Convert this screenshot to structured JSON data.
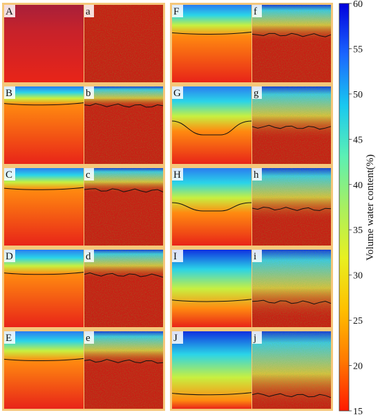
{
  "colorbar": {
    "title": "Volume water content(%)",
    "ticks": [
      "60",
      "55",
      "50",
      "45",
      "40",
      "35",
      "30",
      "25",
      "20",
      "15"
    ],
    "min": 15,
    "max": 60,
    "stops": [
      "#0000dd",
      "#1a66ff",
      "#19c8f0",
      "#5cf0b4",
      "#a8f060",
      "#e8f020",
      "#ffc000",
      "#ff7a00",
      "#ff1a00"
    ]
  },
  "panels": [
    {
      "sim": "A",
      "obs": "a",
      "wet_fraction": 0.0,
      "front_level": null
    },
    {
      "sim": "B",
      "obs": "b",
      "wet_fraction": 0.22,
      "front_level": 0.22
    },
    {
      "sim": "C",
      "obs": "c",
      "wet_fraction": 0.26,
      "front_level": 0.26
    },
    {
      "sim": "D",
      "obs": "d",
      "wet_fraction": 0.3,
      "front_level": 0.3
    },
    {
      "sim": "E",
      "obs": "e",
      "wet_fraction": 0.36,
      "front_level": 0.36
    },
    {
      "sim": "F",
      "obs": "f",
      "wet_fraction": 0.38,
      "front_level": 0.36
    },
    {
      "sim": "G",
      "obs": "g",
      "wet_fraction": 0.55,
      "front_level": 0.5
    },
    {
      "sim": "H",
      "obs": "h",
      "wet_fraction": 0.55,
      "front_level": 0.5
    },
    {
      "sim": "I",
      "obs": "i",
      "wet_fraction": 0.72,
      "front_level": 0.65
    },
    {
      "sim": "J",
      "obs": "j",
      "wet_fraction": 0.85,
      "front_level": 0.8
    }
  ],
  "colors": {
    "frame": "#f5c77a",
    "dry": "#e82418",
    "front_line": "#111111"
  }
}
